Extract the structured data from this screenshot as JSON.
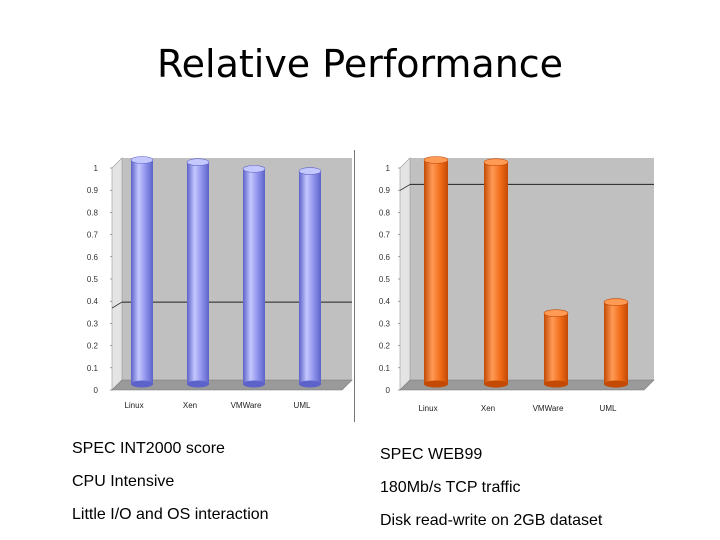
{
  "slide": {
    "title": "Relative Performance"
  },
  "captions": {
    "left": [
      "SPEC INT2000 score",
      "CPU Intensive",
      "Little I/O and OS interaction"
    ],
    "right": [
      "SPEC WEB99",
      "180Mb/s TCP traffic",
      "Disk read-write on 2GB dataset"
    ]
  },
  "chart_data": [
    {
      "type": "bar",
      "categories": [
        "Linux",
        "Xen",
        "VMWare",
        "UML"
      ],
      "values": [
        1.0,
        0.99,
        0.96,
        0.95
      ],
      "yticks": [
        "0",
        "0.1",
        "0.2",
        "0.3",
        "0.4",
        "0.5",
        "0.6",
        "0.7",
        "0.8",
        "0.9",
        "1"
      ],
      "ylim": [
        0,
        1
      ],
      "reference_line": 0.36,
      "bar_color": "#8a8ee8",
      "bar_dark": "#5d62c8",
      "bar_light": "#c5c8ff",
      "background": "#c0c0c0",
      "grid": false
    },
    {
      "type": "bar",
      "categories": [
        "Linux",
        "Xen",
        "VMWare",
        "UML"
      ],
      "values": [
        1.0,
        0.99,
        0.31,
        0.36
      ],
      "yticks": [
        "0",
        "0.1",
        "0.2",
        "0.3",
        "0.4",
        "0.5",
        "0.6",
        "0.7",
        "0.8",
        "0.9",
        "1"
      ],
      "ylim": [
        0,
        1
      ],
      "reference_line": 0.89,
      "bar_color": "#f06a16",
      "bar_dark": "#c24a05",
      "bar_light": "#ff9a55",
      "background": "#c0c0c0",
      "grid": false
    }
  ]
}
